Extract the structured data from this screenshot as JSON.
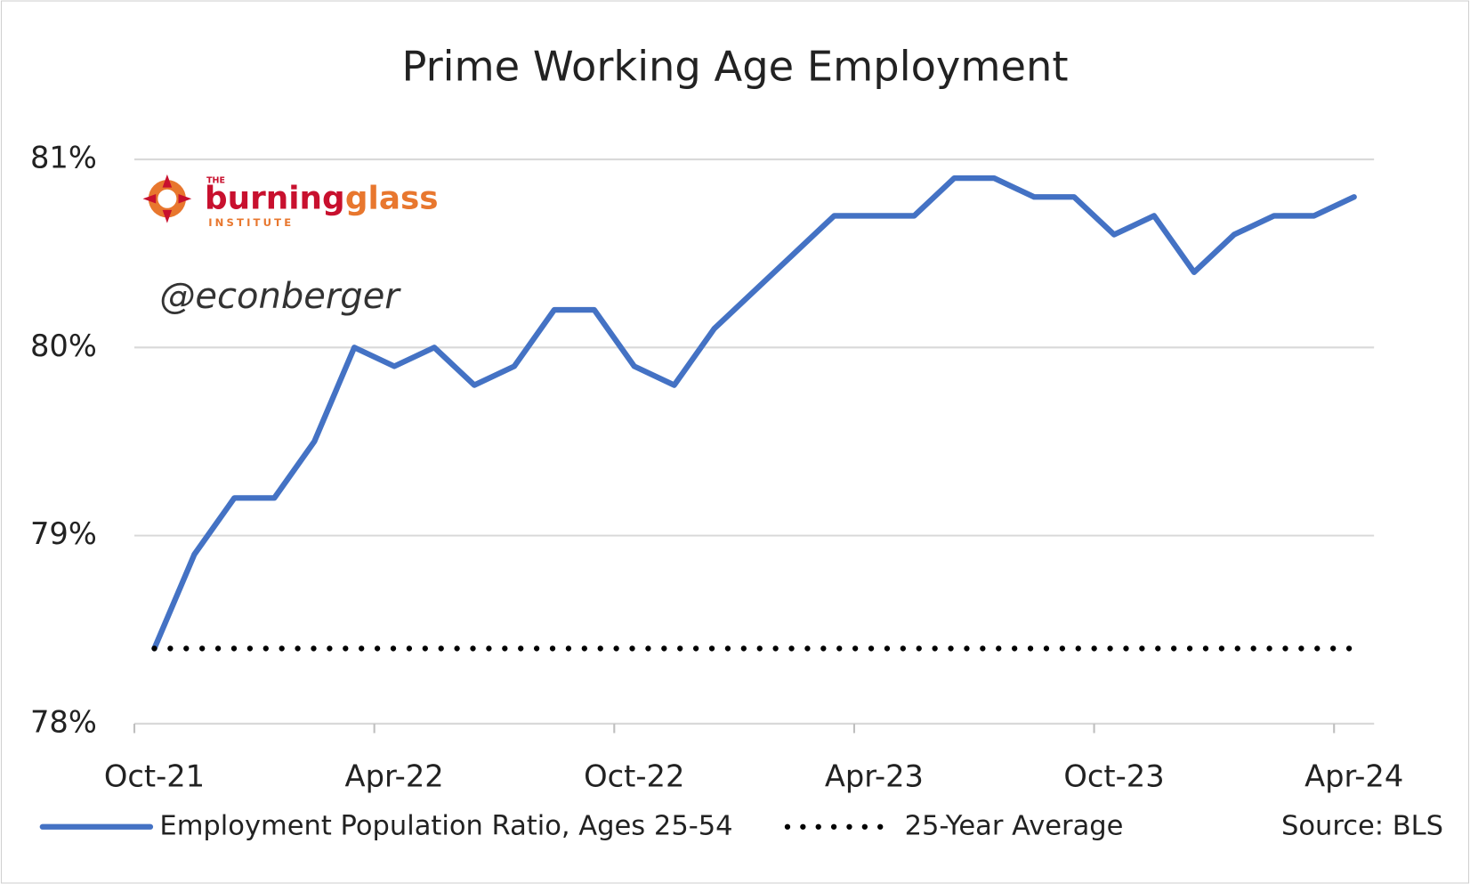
{
  "chart_data": {
    "type": "line",
    "title": "Prime Working Age Employment",
    "categories": [
      "Oct-21",
      null,
      null,
      null,
      null,
      null,
      "Apr-22",
      null,
      null,
      null,
      null,
      null,
      "Oct-22",
      null,
      null,
      null,
      null,
      null,
      "Apr-23",
      null,
      null,
      null,
      null,
      null,
      "Oct-23",
      null,
      null,
      null,
      null,
      null,
      "Apr-24"
    ],
    "series": [
      {
        "name": "Employment Population Ratio, Ages 25-54",
        "color": "#4472c4",
        "style": "solid",
        "values": [
          78.4,
          78.9,
          79.2,
          79.2,
          79.5,
          80.0,
          79.9,
          80.0,
          79.8,
          79.9,
          80.2,
          80.2,
          79.9,
          79.8,
          80.1,
          80.3,
          80.5,
          80.7,
          80.7,
          80.7,
          80.9,
          80.9,
          80.8,
          80.8,
          80.6,
          80.7,
          80.4,
          80.6,
          80.7,
          80.7,
          80.8
        ]
      },
      {
        "name": "25-Year Average",
        "color": "#000000",
        "style": "dotted",
        "values": [
          78.4,
          78.4,
          78.4,
          78.4,
          78.4,
          78.4,
          78.4,
          78.4,
          78.4,
          78.4,
          78.4,
          78.4,
          78.4,
          78.4,
          78.4,
          78.4,
          78.4,
          78.4,
          78.4,
          78.4,
          78.4,
          78.4,
          78.4,
          78.4,
          78.4,
          78.4,
          78.4,
          78.4,
          78.4,
          78.4,
          78.4
        ]
      }
    ],
    "ylim": [
      78,
      81
    ],
    "yticks": [
      {
        "value": 78,
        "label": "78%"
      },
      {
        "value": 79,
        "label": "79%"
      },
      {
        "value": 80,
        "label": "80%"
      },
      {
        "value": 81,
        "label": "81%"
      }
    ],
    "grid": true,
    "legend": "bottom",
    "source": "Source: BLS",
    "annotation": "@econberger",
    "logo": {
      "the": "THE",
      "burning": "burning",
      "glass": "glass",
      "institute": "INSTITUTE"
    }
  }
}
